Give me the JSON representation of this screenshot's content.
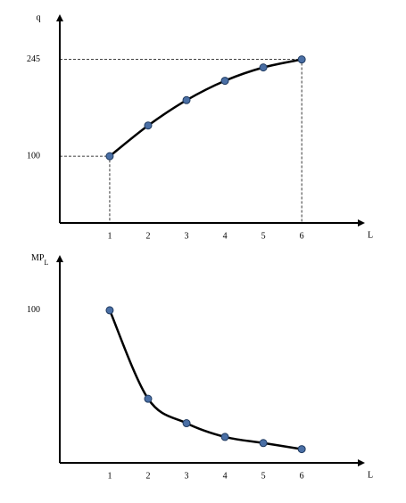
{
  "chart_data": [
    {
      "type": "line",
      "y_label": "q",
      "x_label": "L",
      "x": [
        1,
        2,
        3,
        4,
        5,
        6
      ],
      "xticks": [
        1,
        2,
        3,
        4,
        5,
        6
      ],
      "xlim": [
        -0.3,
        7.6
      ],
      "ylim": [
        0,
        310
      ],
      "yticks": [
        100,
        245
      ],
      "series": [
        {
          "color": "#000000",
          "marker_color": "#4a6fa5",
          "values": [
            100,
            146,
            184,
            213,
            233,
            245
          ]
        }
      ],
      "guides": [
        0,
        5
      ]
    },
    {
      "type": "line",
      "y_label": {
        "text": "MP",
        "subscript": "L"
      },
      "x_label": "L",
      "x": [
        1,
        2,
        3,
        4,
        5,
        6
      ],
      "xticks": [
        1,
        2,
        3,
        4,
        5,
        6
      ],
      "xlim": [
        -0.3,
        7.6
      ],
      "ylim": [
        0,
        135
      ],
      "yticks": [
        100
      ],
      "series": [
        {
          "color": "#000000",
          "marker_color": "#4a6fa5",
          "values": [
            100,
            42,
            26,
            17,
            13,
            9
          ]
        }
      ]
    }
  ]
}
